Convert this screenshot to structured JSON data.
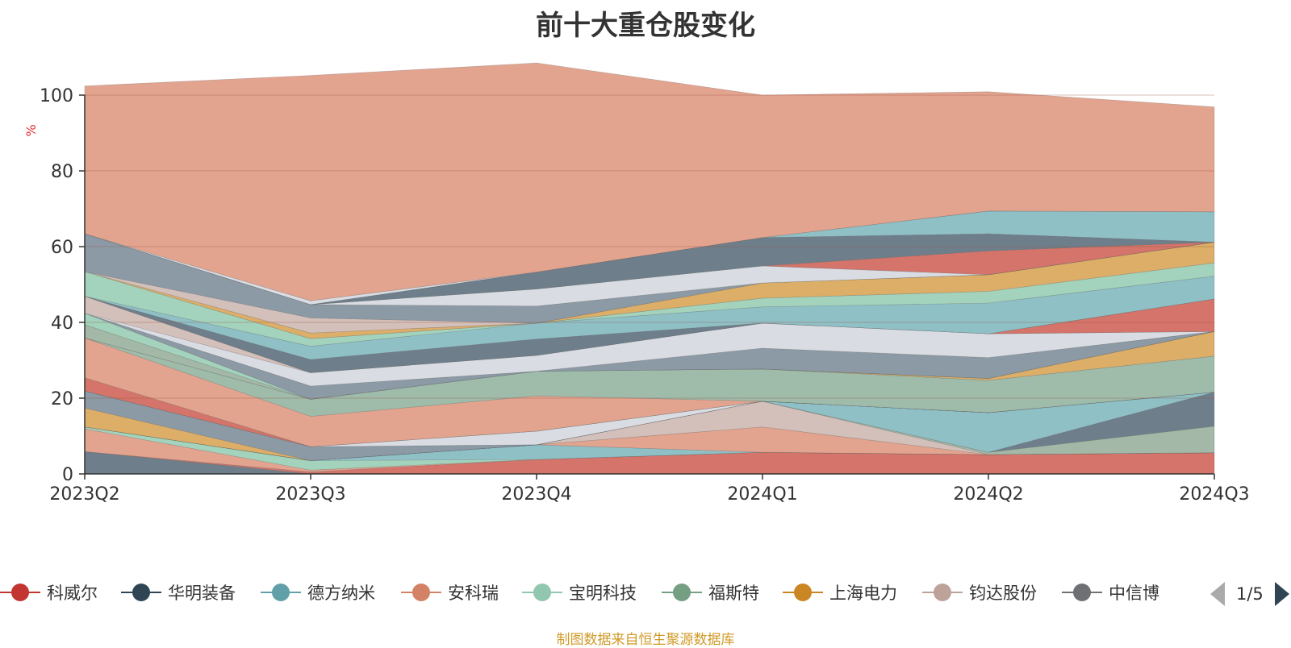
{
  "chart_data": {
    "type": "area",
    "title": "前十大重仓股变化",
    "ylabel": "%",
    "ylim": [
      0,
      100
    ],
    "yticks": [
      0,
      20,
      40,
      60,
      80,
      100
    ],
    "categories": [
      "2023Q2",
      "2023Q3",
      "2023Q4",
      "2024Q1",
      "2024Q2",
      "2024Q3"
    ],
    "layers": [
      {
        "color": "#6e7f8b",
        "values": [
          5.9,
          0,
          0,
          0,
          0,
          0
        ]
      },
      {
        "color": "#d4746a",
        "values": [
          0,
          0.5,
          3.8,
          5.7,
          5.1,
          5.6
        ]
      },
      {
        "color": "#e3a48f",
        "values": [
          6,
          0.5,
          0,
          0,
          0,
          0
        ]
      },
      {
        "color": "#a3d3bc",
        "values": [
          0.5,
          2.5,
          0,
          0,
          0,
          0
        ]
      },
      {
        "color": "#8fc0c6",
        "values": [
          0,
          0,
          3.9,
          0,
          0,
          0
        ]
      },
      {
        "color": "#e3a48f",
        "values": [
          0,
          0,
          0,
          6.7,
          0,
          0
        ]
      },
      {
        "color": "#d4c0ba",
        "values": [
          0,
          0,
          0,
          6.8,
          0,
          0
        ]
      },
      {
        "color": "#a3b8a6",
        "values": [
          0,
          0,
          0,
          0,
          0.6,
          7
        ]
      },
      {
        "color": "#6e7f8b",
        "values": [
          0,
          0,
          0,
          0,
          0,
          9
        ]
      },
      {
        "color": "#8fc0c6",
        "values": [
          0,
          0,
          0,
          0,
          10.5,
          0
        ]
      },
      {
        "color": "#dcae68",
        "values": [
          5,
          0,
          0,
          0,
          0,
          0
        ]
      },
      {
        "color": "#8c9aa6",
        "values": [
          4.5,
          3.7,
          0,
          0,
          0,
          0
        ]
      },
      {
        "color": "#d9dde3",
        "values": [
          0,
          0,
          3.6,
          0,
          0,
          0
        ]
      },
      {
        "color": "#e3a48f",
        "values": [
          0,
          0,
          0,
          0,
          0,
          0
        ]
      },
      {
        "color": "#d4746a",
        "values": [
          3.5,
          0,
          0,
          0,
          0,
          0
        ]
      },
      {
        "color": "#e3a48f",
        "values": [
          10.5,
          8,
          9.3,
          0,
          0,
          0
        ]
      },
      {
        "color": "#9fbcab",
        "values": [
          0,
          4.5,
          6.5,
          8.5,
          8.5,
          9.5
        ]
      },
      {
        "color": "#dcae68",
        "values": [
          0,
          0,
          0,
          0,
          0.5,
          6.5
        ]
      },
      {
        "color": "#a3b8a6",
        "values": [
          3.5,
          0,
          0,
          0,
          0,
          0
        ]
      },
      {
        "color": "#a3d3bc",
        "values": [
          3,
          0,
          0,
          0,
          0,
          0
        ]
      },
      {
        "color": "#8c9aa6",
        "values": [
          0,
          3.5,
          0,
          5.5,
          5.5,
          0
        ]
      },
      {
        "color": "#d9dde3",
        "values": [
          0,
          3.5,
          4.2,
          6.6,
          6.3,
          0
        ]
      },
      {
        "color": "#d4c0ba",
        "values": [
          4.5,
          0,
          0,
          0,
          0,
          0
        ]
      },
      {
        "color": "#d4746a",
        "values": [
          0,
          0,
          0,
          0,
          0,
          8.6
        ]
      },
      {
        "color": "#6e7f8b",
        "values": [
          0,
          3.5,
          4.3,
          0,
          0,
          0
        ]
      },
      {
        "color": "#8fc0c6",
        "values": [
          0,
          3.5,
          4.2,
          4.3,
          8.1,
          6
        ]
      },
      {
        "color": "#a3d3bc",
        "values": [
          6.5,
          2,
          0,
          2.3,
          3.1,
          3.5
        ]
      },
      {
        "color": "#dcae68",
        "values": [
          0,
          1.5,
          0,
          4,
          4.4,
          5.5
        ]
      },
      {
        "color": "#d4c0ba",
        "values": [
          0,
          4,
          0,
          0,
          0,
          0
        ]
      },
      {
        "color": "#8c9aa6",
        "values": [
          10,
          3.5,
          4.5,
          0,
          0,
          0
        ]
      },
      {
        "color": "#d9dde3",
        "values": [
          0,
          0,
          4.5,
          4.5,
          0,
          0
        ]
      },
      {
        "color": "#d4746a",
        "values": [
          0,
          0,
          0,
          0,
          6.3,
          0
        ]
      },
      {
        "color": "#6e7f8b",
        "values": [
          0,
          0,
          4.5,
          7.5,
          4.5,
          0
        ]
      },
      {
        "color": "#8fc0c6",
        "values": [
          0,
          0,
          0,
          0,
          6,
          8
        ]
      },
      {
        "color": "#d9dde3",
        "values": [
          0,
          1,
          0,
          0,
          0,
          0
        ]
      },
      {
        "color": "#e3a48f",
        "values": [
          39,
          59.5,
          55.2,
          37.6,
          31.5,
          27.7
        ]
      }
    ]
  },
  "legend": {
    "items": [
      {
        "label": "科威尔",
        "color": "#c23531"
      },
      {
        "label": "华明装备",
        "color": "#2f4554"
      },
      {
        "label": "德方纳米",
        "color": "#61a0a8"
      },
      {
        "label": "安科瑞",
        "color": "#d48265"
      },
      {
        "label": "宝明科技",
        "color": "#91c7ae"
      },
      {
        "label": "福斯特",
        "color": "#749f83"
      },
      {
        "label": "上海电力",
        "color": "#ca8622"
      },
      {
        "label": "钧达股份",
        "color": "#bda29a"
      },
      {
        "label": "中信博",
        "color": "#6e7074"
      }
    ],
    "page_text": "1/5"
  },
  "source_note": "制图数据来自恒生聚源数据库"
}
